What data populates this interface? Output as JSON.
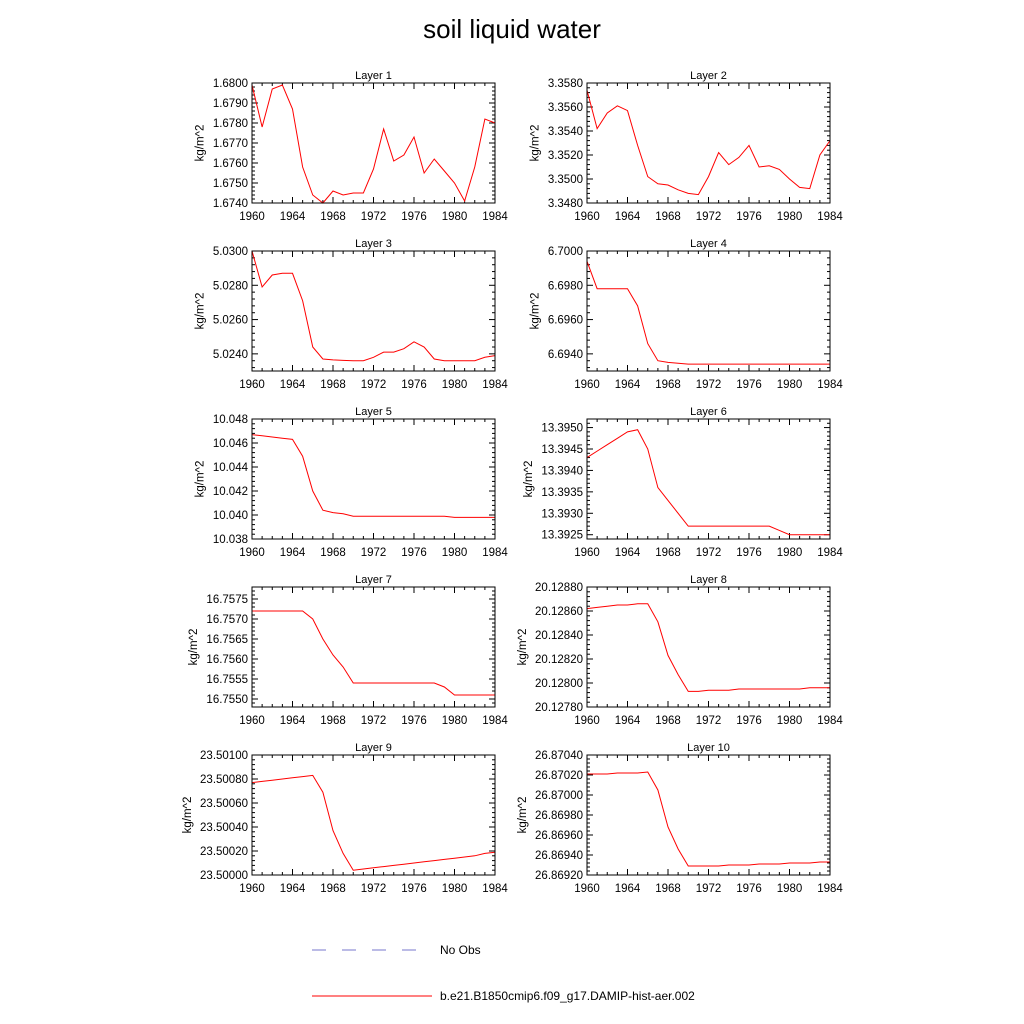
{
  "title": "soil liquid water",
  "legend": [
    {
      "label": "No Obs",
      "color": "#7777cc",
      "dashed": true
    },
    {
      "label": "b.e21.B1850cmip6.f09_g17.DAMIP-hist-aer.002",
      "color": "#ff0000",
      "dashed": false
    }
  ],
  "chart_data": [
    {
      "type": "line",
      "title": "Layer 1",
      "ylabel": "kg/m^2",
      "xlim": [
        1960,
        1984
      ],
      "ylim": [
        1.674,
        1.68
      ],
      "xticks": [
        "1960",
        "1964",
        "1968",
        "1972",
        "1976",
        "1980",
        "1984"
      ],
      "yticks": [
        "1.6740",
        "1.6750",
        "1.6760",
        "1.6770",
        "1.6780",
        "1.6790",
        "1.6800"
      ],
      "x": [
        1960,
        1961,
        1962,
        1963,
        1964,
        1965,
        1966,
        1967,
        1968,
        1969,
        1970,
        1971,
        1972,
        1973,
        1974,
        1975,
        1976,
        1977,
        1978,
        1979,
        1980,
        1981,
        1982,
        1983,
        1984
      ],
      "series": [
        {
          "color": "#ff0000",
          "values": [
            1.6799,
            1.6778,
            1.6797,
            1.6799,
            1.6787,
            1.6758,
            1.6744,
            1.674,
            1.6746,
            1.6744,
            1.6745,
            1.6745,
            1.6757,
            1.6777,
            1.6761,
            1.6764,
            1.6773,
            1.6755,
            1.6762,
            1.6756,
            1.675,
            1.6741,
            1.6758,
            1.6782,
            1.678
          ]
        }
      ]
    },
    {
      "type": "line",
      "title": "Layer 2",
      "ylabel": "kg/m^2",
      "xlim": [
        1960,
        1984
      ],
      "ylim": [
        3.348,
        3.358
      ],
      "xticks": [
        "1960",
        "1964",
        "1968",
        "1972",
        "1976",
        "1980",
        "1984"
      ],
      "yticks": [
        "3.3480",
        "3.3500",
        "3.3520",
        "3.3540",
        "3.3560",
        "3.3580"
      ],
      "x": [
        1960,
        1961,
        1962,
        1963,
        1964,
        1965,
        1966,
        1967,
        1968,
        1969,
        1970,
        1971,
        1972,
        1973,
        1974,
        1975,
        1976,
        1977,
        1978,
        1979,
        1980,
        1981,
        1982,
        1983,
        1984
      ],
      "series": [
        {
          "color": "#ff0000",
          "values": [
            3.3574,
            3.3542,
            3.3555,
            3.3561,
            3.3557,
            3.3528,
            3.3502,
            3.3496,
            3.3495,
            3.3491,
            3.3488,
            3.3487,
            3.3502,
            3.3522,
            3.3512,
            3.3518,
            3.3528,
            3.351,
            3.3511,
            3.3508,
            3.35,
            3.3493,
            3.3492,
            3.352,
            3.3532
          ]
        }
      ]
    },
    {
      "type": "line",
      "title": "Layer 3",
      "ylabel": "kg/m^2",
      "xlim": [
        1960,
        1984
      ],
      "ylim": [
        5.023,
        5.03
      ],
      "xticks": [
        "1960",
        "1964",
        "1968",
        "1972",
        "1976",
        "1980",
        "1984"
      ],
      "yticks": [
        "5.0240",
        "5.0260",
        "5.0280",
        "5.0300"
      ],
      "x": [
        1960,
        1961,
        1962,
        1963,
        1964,
        1965,
        1966,
        1967,
        1968,
        1969,
        1970,
        1971,
        1972,
        1973,
        1974,
        1975,
        1976,
        1977,
        1978,
        1979,
        1980,
        1981,
        1982,
        1983,
        1984
      ],
      "series": [
        {
          "color": "#ff0000",
          "values": [
            5.03,
            5.0279,
            5.0286,
            5.0287,
            5.0287,
            5.0271,
            5.0244,
            5.0237,
            5.02365,
            5.02362,
            5.0236,
            5.0236,
            5.0238,
            5.0241,
            5.0241,
            5.0243,
            5.0247,
            5.0244,
            5.0237,
            5.0236,
            5.0236,
            5.0236,
            5.0236,
            5.0238,
            5.0239
          ]
        }
      ]
    },
    {
      "type": "line",
      "title": "Layer 4",
      "ylabel": "kg/m^2",
      "xlim": [
        1960,
        1984
      ],
      "ylim": [
        6.693,
        6.7
      ],
      "xticks": [
        "1960",
        "1964",
        "1968",
        "1972",
        "1976",
        "1980",
        "1984"
      ],
      "yticks": [
        "6.6940",
        "6.6960",
        "6.6980",
        "6.7000"
      ],
      "x": [
        1960,
        1961,
        1962,
        1963,
        1964,
        1965,
        1966,
        1967,
        1968,
        1969,
        1970,
        1971,
        1972,
        1973,
        1974,
        1975,
        1976,
        1977,
        1978,
        1979,
        1980,
        1981,
        1982,
        1983,
        1984
      ],
      "series": [
        {
          "color": "#ff0000",
          "values": [
            6.6994,
            6.6978,
            6.6978,
            6.6978,
            6.6978,
            6.6968,
            6.6946,
            6.6936,
            6.6935,
            6.69345,
            6.6934,
            6.6934,
            6.6934,
            6.6934,
            6.6934,
            6.6934,
            6.6934,
            6.6934,
            6.6934,
            6.6934,
            6.6934,
            6.6934,
            6.6934,
            6.6934,
            6.6934
          ]
        }
      ]
    },
    {
      "type": "line",
      "title": "Layer 5",
      "ylabel": "kg/m^2",
      "xlim": [
        1960,
        1984
      ],
      "ylim": [
        10.038,
        10.048
      ],
      "xticks": [
        "1960",
        "1964",
        "1968",
        "1972",
        "1976",
        "1980",
        "1984"
      ],
      "yticks": [
        "10.038",
        "10.040",
        "10.042",
        "10.044",
        "10.046",
        "10.048"
      ],
      "x": [
        1960,
        1961,
        1962,
        1963,
        1964,
        1965,
        1966,
        1967,
        1968,
        1969,
        1970,
        1971,
        1972,
        1973,
        1974,
        1975,
        1976,
        1977,
        1978,
        1979,
        1980,
        1981,
        1982,
        1983,
        1984
      ],
      "series": [
        {
          "color": "#ff0000",
          "values": [
            10.0467,
            10.0466,
            10.0465,
            10.0464,
            10.0463,
            10.0449,
            10.042,
            10.0404,
            10.0402,
            10.0401,
            10.0399,
            10.0399,
            10.0399,
            10.0399,
            10.0399,
            10.0399,
            10.0399,
            10.0399,
            10.0399,
            10.0399,
            10.0398,
            10.0398,
            10.0398,
            10.0398,
            10.0398
          ]
        }
      ]
    },
    {
      "type": "line",
      "title": "Layer 6",
      "ylabel": "kg/m^2",
      "xlim": [
        1960,
        1984
      ],
      "ylim": [
        13.3924,
        13.3952
      ],
      "xticks": [
        "1960",
        "1964",
        "1968",
        "1972",
        "1976",
        "1980",
        "1984"
      ],
      "yticks": [
        "13.3925",
        "13.3930",
        "13.3935",
        "13.3940",
        "13.3945",
        "13.3950"
      ],
      "x": [
        1960,
        1961,
        1962,
        1963,
        1964,
        1965,
        1966,
        1967,
        1968,
        1969,
        1970,
        1971,
        1972,
        1973,
        1974,
        1975,
        1976,
        1977,
        1978,
        1979,
        1980,
        1981,
        1982,
        1983,
        1984
      ],
      "series": [
        {
          "color": "#ff0000",
          "values": [
            13.3943,
            13.39445,
            13.3946,
            13.39475,
            13.3949,
            13.39495,
            13.3945,
            13.3936,
            13.3933,
            13.393,
            13.3927,
            13.3927,
            13.3927,
            13.3927,
            13.3927,
            13.3927,
            13.3927,
            13.3927,
            13.3927,
            13.3926,
            13.3925,
            13.3925,
            13.3925,
            13.3925,
            13.3925
          ]
        }
      ]
    },
    {
      "type": "line",
      "title": "Layer 7",
      "ylabel": "kg/m^2",
      "xlim": [
        1960,
        1984
      ],
      "ylim": [
        16.7548,
        16.7578
      ],
      "xticks": [
        "1960",
        "1964",
        "1968",
        "1972",
        "1976",
        "1980",
        "1984"
      ],
      "yticks": [
        "16.7550",
        "16.7555",
        "16.7560",
        "16.7565",
        "16.7570",
        "16.7575"
      ],
      "x": [
        1960,
        1961,
        1962,
        1963,
        1964,
        1965,
        1966,
        1967,
        1968,
        1969,
        1970,
        1971,
        1972,
        1973,
        1974,
        1975,
        1976,
        1977,
        1978,
        1979,
        1980,
        1981,
        1982,
        1983,
        1984
      ],
      "series": [
        {
          "color": "#ff0000",
          "values": [
            16.7572,
            16.7572,
            16.7572,
            16.7572,
            16.7572,
            16.7572,
            16.757,
            16.7565,
            16.7561,
            16.7558,
            16.7554,
            16.7554,
            16.7554,
            16.7554,
            16.7554,
            16.7554,
            16.7554,
            16.7554,
            16.7554,
            16.7553,
            16.7551,
            16.7551,
            16.7551,
            16.7551,
            16.7551
          ]
        }
      ]
    },
    {
      "type": "line",
      "title": "Layer 8",
      "ylabel": "kg/m^2",
      "xlim": [
        1960,
        1984
      ],
      "ylim": [
        20.1278,
        20.1288
      ],
      "xticks": [
        "1960",
        "1964",
        "1968",
        "1972",
        "1976",
        "1980",
        "1984"
      ],
      "yticks": [
        "20.12780",
        "20.12800",
        "20.12820",
        "20.12840",
        "20.12860",
        "20.12880"
      ],
      "x": [
        1960,
        1961,
        1962,
        1963,
        1964,
        1965,
        1966,
        1967,
        1968,
        1969,
        1970,
        1971,
        1972,
        1973,
        1974,
        1975,
        1976,
        1977,
        1978,
        1979,
        1980,
        1981,
        1982,
        1983,
        1984
      ],
      "series": [
        {
          "color": "#ff0000",
          "values": [
            20.12862,
            20.12863,
            20.12864,
            20.12865,
            20.12865,
            20.12866,
            20.12866,
            20.12851,
            20.12823,
            20.12807,
            20.12793,
            20.12793,
            20.12794,
            20.12794,
            20.12794,
            20.12795,
            20.12795,
            20.12795,
            20.12795,
            20.12795,
            20.12795,
            20.12795,
            20.12796,
            20.12796,
            20.12796
          ]
        }
      ]
    },
    {
      "type": "line",
      "title": "Layer 9",
      "ylabel": "kg/m^2",
      "xlim": [
        1960,
        1984
      ],
      "ylim": [
        23.5,
        23.501
      ],
      "xticks": [
        "1960",
        "1964",
        "1968",
        "1972",
        "1976",
        "1980",
        "1984"
      ],
      "yticks": [
        "23.50000",
        "23.50020",
        "23.50040",
        "23.50060",
        "23.50080",
        "23.50100"
      ],
      "x": [
        1960,
        1961,
        1962,
        1963,
        1964,
        1965,
        1966,
        1967,
        1968,
        1969,
        1970,
        1971,
        1972,
        1973,
        1974,
        1975,
        1976,
        1977,
        1978,
        1979,
        1980,
        1981,
        1982,
        1983,
        1984
      ],
      "series": [
        {
          "color": "#ff0000",
          "values": [
            23.50077,
            23.50078,
            23.50079,
            23.5008,
            23.50081,
            23.50082,
            23.50083,
            23.50069,
            23.50037,
            23.50018,
            23.50004,
            23.50005,
            23.50006,
            23.50007,
            23.50008,
            23.50009,
            23.5001,
            23.50011,
            23.50012,
            23.50013,
            23.50014,
            23.50015,
            23.50016,
            23.50018,
            23.50019
          ]
        }
      ]
    },
    {
      "type": "line",
      "title": "Layer 10",
      "ylabel": "kg/m^2",
      "xlim": [
        1960,
        1984
      ],
      "ylim": [
        26.8692,
        26.8704
      ],
      "xticks": [
        "1960",
        "1964",
        "1968",
        "1972",
        "1976",
        "1980",
        "1984"
      ],
      "yticks": [
        "26.86920",
        "26.86940",
        "26.86960",
        "26.86980",
        "26.87000",
        "26.87020",
        "26.87040"
      ],
      "x": [
        1960,
        1961,
        1962,
        1963,
        1964,
        1965,
        1966,
        1967,
        1968,
        1969,
        1970,
        1971,
        1972,
        1973,
        1974,
        1975,
        1976,
        1977,
        1978,
        1979,
        1980,
        1981,
        1982,
        1983,
        1984
      ],
      "series": [
        {
          "color": "#ff0000",
          "values": [
            26.87021,
            26.87021,
            26.87021,
            26.87022,
            26.87022,
            26.87022,
            26.87023,
            26.87005,
            26.86968,
            26.86946,
            26.86929,
            26.86929,
            26.86929,
            26.86929,
            26.8693,
            26.8693,
            26.8693,
            26.86931,
            26.86931,
            26.86931,
            26.86932,
            26.86932,
            26.86932,
            26.86933,
            26.86933
          ]
        }
      ]
    }
  ]
}
